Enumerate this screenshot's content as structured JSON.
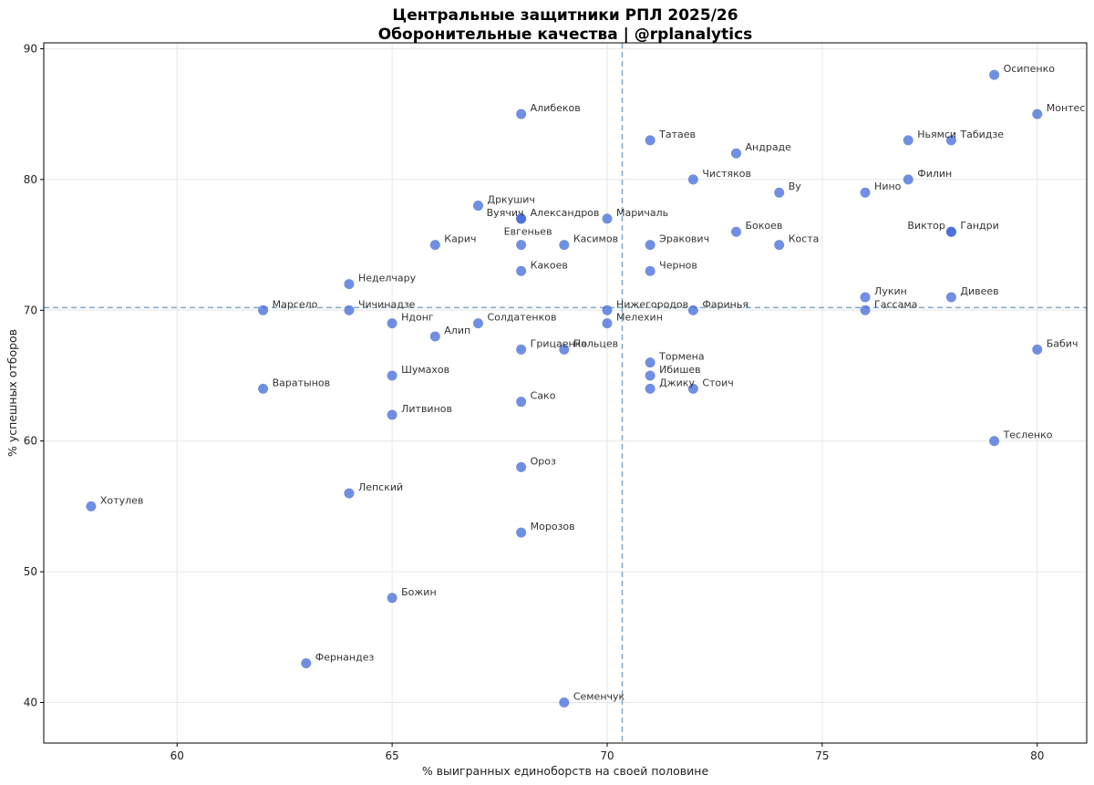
{
  "chart_data": {
    "type": "scatter",
    "title": "Центральные защитники РПЛ 2025/26",
    "subtitle": "Оборонительные качества | @rplanalytics",
    "xlabel": "% выигранных единоборств на своей половине",
    "ylabel": "% успешных отборов",
    "xlim": [
      56.9,
      81.15
    ],
    "ylim": [
      36.9,
      90.45
    ],
    "xticks": [
      60,
      65,
      70,
      75,
      80
    ],
    "yticks": [
      40,
      50,
      60,
      70,
      80,
      90
    ],
    "grid": true,
    "ref_lines": {
      "x_mean": 70.35,
      "y_mean": 70.2
    },
    "colors": {
      "point": "#4169d8",
      "ref_line": "#7fa8c9",
      "grid": "#e6e6e6"
    },
    "points": [
      {
        "name": "Осипенко",
        "x": 79,
        "y": 88
      },
      {
        "name": "Монтес",
        "x": 80,
        "y": 85
      },
      {
        "name": "Алибеков",
        "x": 68,
        "y": 85
      },
      {
        "name": "Татаев",
        "x": 71,
        "y": 83
      },
      {
        "name": "Андраде",
        "x": 73,
        "y": 82
      },
      {
        "name": "Ньямси",
        "x": 77,
        "y": 83
      },
      {
        "name": "Табидзе",
        "x": 78,
        "y": 83
      },
      {
        "name": "Чистяков",
        "x": 72,
        "y": 80
      },
      {
        "name": "Филин",
        "x": 77,
        "y": 80
      },
      {
        "name": "Ву",
        "x": 74,
        "y": 79
      },
      {
        "name": "Нино",
        "x": 76,
        "y": 79
      },
      {
        "name": "Дркушич",
        "x": 67,
        "y": 78
      },
      {
        "name": "Вуячич",
        "x": 68,
        "y": 77
      },
      {
        "name": "Александров",
        "x": 68,
        "y": 77
      },
      {
        "name": "Маричаль",
        "x": 70,
        "y": 77
      },
      {
        "name": "Бокоев",
        "x": 73,
        "y": 76
      },
      {
        "name": "Виктор",
        "x": 78,
        "y": 76
      },
      {
        "name": "Гандри",
        "x": 78,
        "y": 76
      },
      {
        "name": "Карич",
        "x": 66,
        "y": 75
      },
      {
        "name": "Евгеньев",
        "x": 68,
        "y": 75
      },
      {
        "name": "Касимов",
        "x": 69,
        "y": 75
      },
      {
        "name": "Эракович",
        "x": 71,
        "y": 75
      },
      {
        "name": "Коста",
        "x": 74,
        "y": 75
      },
      {
        "name": "Какоев",
        "x": 68,
        "y": 73
      },
      {
        "name": "Чернов",
        "x": 71,
        "y": 73
      },
      {
        "name": "Неделчару",
        "x": 64,
        "y": 72
      },
      {
        "name": "Лукин",
        "x": 76,
        "y": 71
      },
      {
        "name": "Дивеев",
        "x": 78,
        "y": 71
      },
      {
        "name": "Марсело",
        "x": 62,
        "y": 70
      },
      {
        "name": "Чичинадзе",
        "x": 64,
        "y": 70
      },
      {
        "name": "Нижегородов",
        "x": 70,
        "y": 70
      },
      {
        "name": "Фаринья",
        "x": 72,
        "y": 70
      },
      {
        "name": "Гассама",
        "x": 76,
        "y": 70
      },
      {
        "name": "Ндонг",
        "x": 65,
        "y": 69
      },
      {
        "name": "Солдатенков",
        "x": 67,
        "y": 69
      },
      {
        "name": "Мелехин",
        "x": 70,
        "y": 69
      },
      {
        "name": "Алип",
        "x": 66,
        "y": 68
      },
      {
        "name": "Грицаенко",
        "x": 68,
        "y": 67
      },
      {
        "name": "Пальцев",
        "x": 69,
        "y": 67
      },
      {
        "name": "Бабич",
        "x": 80,
        "y": 67
      },
      {
        "name": "Тормена",
        "x": 71,
        "y": 66
      },
      {
        "name": "Шумахов",
        "x": 65,
        "y": 65
      },
      {
        "name": "Ибишев",
        "x": 71,
        "y": 65
      },
      {
        "name": "Варатынов",
        "x": 62,
        "y": 64
      },
      {
        "name": "Джику",
        "x": 71,
        "y": 64
      },
      {
        "name": "Стоич",
        "x": 72,
        "y": 64
      },
      {
        "name": "Сако",
        "x": 68,
        "y": 63
      },
      {
        "name": "Литвинов",
        "x": 65,
        "y": 62
      },
      {
        "name": "Тесленко",
        "x": 79,
        "y": 60
      },
      {
        "name": "Ороз",
        "x": 68,
        "y": 58
      },
      {
        "name": "Лепский",
        "x": 64,
        "y": 56
      },
      {
        "name": "Хотулев",
        "x": 58,
        "y": 55
      },
      {
        "name": "Морозов",
        "x": 68,
        "y": 53
      },
      {
        "name": "Божин",
        "x": 65,
        "y": 48
      },
      {
        "name": "Фернандез",
        "x": 63,
        "y": 43
      },
      {
        "name": "Семенчук",
        "x": 69,
        "y": 40
      }
    ]
  }
}
